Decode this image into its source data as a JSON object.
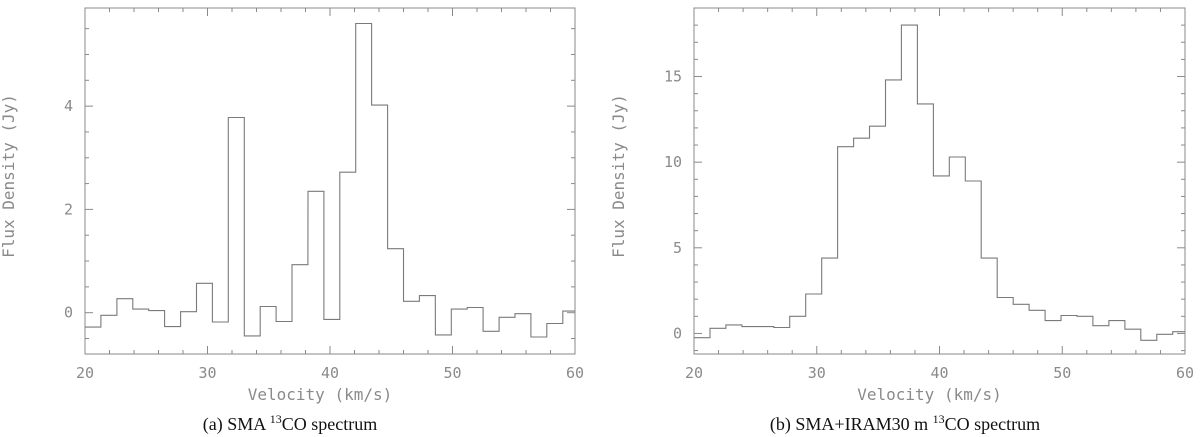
{
  "chart_data": [
    {
      "type": "line",
      "step": true,
      "caption": {
        "prefix": "(a)  SMA ",
        "sup": "13",
        "suffix": "CO spectrum"
      },
      "xlabel": "Velocity (km/s)",
      "ylabel": "Flux Density (Jy)",
      "xlim": [
        20,
        60
      ],
      "ylim": [
        -0.8,
        5.9
      ],
      "xticks": [
        20,
        30,
        40,
        50,
        60
      ],
      "yticks": [
        0,
        2,
        4
      ],
      "grid": false,
      "channel_width": 1.3,
      "x": [
        20.0,
        21.3,
        22.6,
        23.9,
        25.2,
        26.5,
        27.8,
        29.1,
        30.4,
        31.7,
        33.0,
        34.3,
        35.6,
        36.9,
        38.2,
        39.5,
        40.8,
        42.1,
        43.4,
        44.7,
        46.0,
        47.3,
        48.6,
        49.9,
        51.2,
        52.5,
        53.8,
        55.1,
        56.4,
        57.7,
        59.0
      ],
      "values": [
        -0.28,
        -0.05,
        0.27,
        0.07,
        0.04,
        -0.27,
        0.02,
        0.57,
        -0.18,
        3.78,
        -0.45,
        0.12,
        -0.17,
        0.93,
        2.35,
        -0.13,
        2.72,
        5.6,
        4.02,
        1.24,
        0.22,
        0.33,
        -0.43,
        0.07,
        0.1,
        -0.36,
        -0.09,
        -0.02,
        -0.47,
        -0.21,
        0.03
      ]
    },
    {
      "type": "line",
      "step": true,
      "caption": {
        "prefix": "(b)  SMA+IRAM30 m ",
        "sup": "13",
        "suffix": "CO spectrum"
      },
      "xlabel": "Velocity (km/s)",
      "ylabel": "Flux Density (Jy)",
      "xlim": [
        20,
        60
      ],
      "ylim": [
        -1.2,
        19.0
      ],
      "xticks": [
        20,
        30,
        40,
        50,
        60
      ],
      "yticks": [
        0,
        5,
        10,
        15
      ],
      "grid": false,
      "channel_width": 1.3,
      "x": [
        20.0,
        21.3,
        22.6,
        23.9,
        25.2,
        26.5,
        27.8,
        29.1,
        30.4,
        31.7,
        33.0,
        34.3,
        35.6,
        36.9,
        38.2,
        39.5,
        40.8,
        42.1,
        43.4,
        44.7,
        46.0,
        47.3,
        48.6,
        49.9,
        51.2,
        52.5,
        53.8,
        55.1,
        56.4,
        57.7,
        59.0
      ],
      "values": [
        -0.25,
        0.3,
        0.5,
        0.4,
        0.4,
        0.35,
        1.0,
        2.3,
        4.4,
        10.9,
        11.4,
        12.1,
        14.8,
        18.0,
        13.4,
        9.2,
        10.3,
        8.9,
        4.4,
        2.1,
        1.7,
        1.35,
        0.75,
        1.05,
        1.0,
        0.45,
        0.75,
        0.25,
        -0.4,
        -0.05,
        0.1
      ]
    }
  ]
}
